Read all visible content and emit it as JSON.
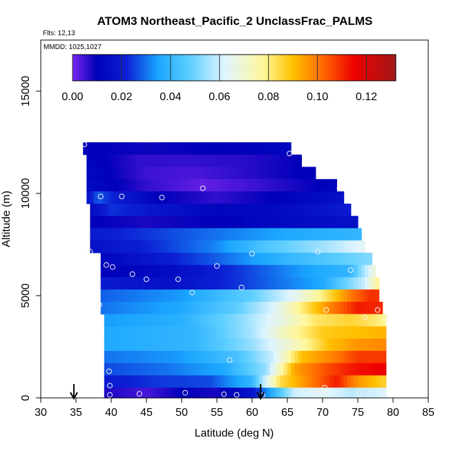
{
  "chart_data": {
    "type": "heatmap",
    "title": "ATOM3 Northeast_Pacific_2 UnclassFrac_PALMS",
    "flights_note": "Flts: 12,13",
    "dates_note": "MMDD: 1025,1027",
    "xlabel": "Latitude (deg N)",
    "ylabel": "Altitude (m)",
    "xlim": [
      30,
      85
    ],
    "ylim": [
      0,
      17500
    ],
    "x_ticks": [
      "30",
      "35",
      "40",
      "45",
      "50",
      "55",
      "60",
      "65",
      "70",
      "75",
      "80",
      "85"
    ],
    "y_ticks": [
      "0",
      "5000",
      "10000",
      "15000"
    ],
    "colorbar": {
      "range": [
        0,
        0.132
      ],
      "tick_labels": [
        "0.00",
        "0.02",
        "0.04",
        "0.06",
        "0.08",
        "0.10",
        "0.12"
      ],
      "tick_values": [
        0,
        0.02,
        0.04,
        0.06,
        0.08,
        0.1,
        0.12
      ],
      "stops": [
        {
          "v": 0.0,
          "c": "#7b26f0"
        },
        {
          "v": 0.01,
          "c": "#0000b8"
        },
        {
          "v": 0.022,
          "c": "#0c20d4"
        },
        {
          "v": 0.035,
          "c": "#1aa6ff"
        },
        {
          "v": 0.048,
          "c": "#5fcfff"
        },
        {
          "v": 0.062,
          "c": "#dff4ff"
        },
        {
          "v": 0.078,
          "c": "#fff79a"
        },
        {
          "v": 0.09,
          "c": "#ffc000"
        },
        {
          "v": 0.102,
          "c": "#ff6a00"
        },
        {
          "v": 0.115,
          "c": "#ee0000"
        },
        {
          "v": 0.132,
          "c": "#a01818"
        }
      ]
    },
    "altitude_bands": [
      {
        "alt": [
          11900,
          12500
        ],
        "lat": [
          36,
          65.5
        ],
        "profile": [
          [
            36,
            0.01
          ],
          [
            45,
            0.009
          ],
          [
            55,
            0.01
          ],
          [
            65.5,
            0.012
          ]
        ]
      },
      {
        "alt": [
          11300,
          11900
        ],
        "lat": [
          36.5,
          67
        ],
        "profile": [
          [
            36.5,
            0.012
          ],
          [
            44,
            0.006
          ],
          [
            52,
            0.006
          ],
          [
            60,
            0.007
          ],
          [
            67,
            0.01
          ]
        ]
      },
      {
        "alt": [
          10700,
          11300
        ],
        "lat": [
          36.5,
          69
        ],
        "profile": [
          [
            36.5,
            0.013
          ],
          [
            45,
            0.005
          ],
          [
            52,
            0.004
          ],
          [
            60,
            0.007
          ],
          [
            69,
            0.011
          ]
        ]
      },
      {
        "alt": [
          10100,
          10700
        ],
        "lat": [
          36.5,
          72
        ],
        "profile": [
          [
            36.5,
            0.014
          ],
          [
            45,
            0.006
          ],
          [
            53,
            0.002
          ],
          [
            60,
            0.005
          ],
          [
            68,
            0.009
          ],
          [
            72,
            0.012
          ]
        ]
      },
      {
        "alt": [
          9500,
          10100
        ],
        "lat": [
          36.5,
          73
        ],
        "profile": [
          [
            36.5,
            0.016
          ],
          [
            38,
            0.028
          ],
          [
            41,
            0.02
          ],
          [
            47,
            0.01
          ],
          [
            55,
            0.006
          ],
          [
            63,
            0.01
          ],
          [
            73,
            0.016
          ]
        ]
      },
      {
        "alt": [
          8900,
          9500
        ],
        "lat": [
          37,
          74
        ],
        "profile": [
          [
            37,
            0.014
          ],
          [
            40,
            0.024
          ],
          [
            46,
            0.018
          ],
          [
            55,
            0.012
          ],
          [
            65,
            0.014
          ],
          [
            74,
            0.02
          ]
        ]
      },
      {
        "alt": [
          8300,
          8900
        ],
        "lat": [
          37,
          75
        ],
        "profile": [
          [
            37,
            0.01
          ],
          [
            45,
            0.008
          ],
          [
            55,
            0.01
          ],
          [
            65,
            0.014
          ],
          [
            75,
            0.016
          ]
        ]
      },
      {
        "alt": [
          7700,
          8300
        ],
        "lat": [
          37,
          75.5
        ],
        "profile": [
          [
            37,
            0.02
          ],
          [
            45,
            0.024
          ],
          [
            55,
            0.03
          ],
          [
            65,
            0.036
          ],
          [
            75.5,
            0.04
          ]
        ]
      },
      {
        "alt": [
          7100,
          7700
        ],
        "lat": [
          37,
          76
        ],
        "profile": [
          [
            37,
            0.016
          ],
          [
            45,
            0.022
          ],
          [
            55,
            0.032
          ],
          [
            62,
            0.045
          ],
          [
            70,
            0.055
          ],
          [
            76,
            0.064
          ]
        ]
      },
      {
        "alt": [
          6500,
          7100
        ],
        "lat": [
          38.5,
          77
        ],
        "profile": [
          [
            38.5,
            0.012
          ],
          [
            45,
            0.018
          ],
          [
            55,
            0.028
          ],
          [
            65,
            0.04
          ],
          [
            77,
            0.052
          ]
        ]
      },
      {
        "alt": [
          5900,
          6500
        ],
        "lat": [
          38.5,
          77.5
        ],
        "profile": [
          [
            38.5,
            0.01
          ],
          [
            48,
            0.014
          ],
          [
            58,
            0.024
          ],
          [
            67,
            0.034
          ],
          [
            74,
            0.04
          ],
          [
            77.5,
            0.07
          ]
        ]
      },
      {
        "alt": [
          5300,
          5900
        ],
        "lat": [
          38.5,
          78
        ],
        "profile": [
          [
            38.5,
            0.02
          ],
          [
            48,
            0.016
          ],
          [
            58,
            0.024
          ],
          [
            70,
            0.036
          ],
          [
            76,
            0.06
          ],
          [
            78,
            0.08
          ]
        ]
      },
      {
        "alt": [
          4700,
          5300
        ],
        "lat": [
          38.5,
          78
        ],
        "profile": [
          [
            38.5,
            0.028
          ],
          [
            50,
            0.034
          ],
          [
            60,
            0.048
          ],
          [
            66,
            0.064
          ],
          [
            70,
            0.08
          ],
          [
            74,
            0.1
          ],
          [
            77,
            0.11
          ],
          [
            78,
            0.108
          ]
        ]
      },
      {
        "alt": [
          4100,
          4700
        ],
        "lat": [
          38.5,
          78.5
        ],
        "profile": [
          [
            38.5,
            0.03
          ],
          [
            50,
            0.036
          ],
          [
            58,
            0.048
          ],
          [
            63,
            0.062
          ],
          [
            67,
            0.08
          ],
          [
            71,
            0.098
          ],
          [
            75,
            0.112
          ],
          [
            78.5,
            0.11
          ]
        ]
      },
      {
        "alt": [
          3500,
          4100
        ],
        "lat": [
          39,
          79
        ],
        "profile": [
          [
            39,
            0.034
          ],
          [
            50,
            0.038
          ],
          [
            58,
            0.052
          ],
          [
            64,
            0.066
          ],
          [
            69,
            0.082
          ],
          [
            74,
            0.086
          ],
          [
            77,
            0.082
          ],
          [
            79,
            0.078
          ]
        ]
      },
      {
        "alt": [
          2900,
          3500
        ],
        "lat": [
          39,
          79
        ],
        "profile": [
          [
            39,
            0.036
          ],
          [
            52,
            0.04
          ],
          [
            60,
            0.056
          ],
          [
            65,
            0.074
          ],
          [
            70,
            0.088
          ],
          [
            75,
            0.09
          ],
          [
            79,
            0.092
          ]
        ]
      },
      {
        "alt": [
          2300,
          2900
        ],
        "lat": [
          39,
          79
        ],
        "profile": [
          [
            39,
            0.036
          ],
          [
            52,
            0.04
          ],
          [
            60,
            0.054
          ],
          [
            66,
            0.072
          ],
          [
            71,
            0.09
          ],
          [
            75,
            0.096
          ],
          [
            79,
            0.098
          ]
        ]
      },
      {
        "alt": [
          1700,
          2300
        ],
        "lat": [
          39,
          79
        ],
        "profile": [
          [
            39,
            0.03
          ],
          [
            50,
            0.034
          ],
          [
            58,
            0.044
          ],
          [
            63,
            0.06
          ],
          [
            67,
            0.09
          ],
          [
            72,
            0.1
          ],
          [
            75,
            0.108
          ],
          [
            79,
            0.108
          ]
        ]
      },
      {
        "alt": [
          1100,
          1700
        ],
        "lat": [
          39,
          79
        ],
        "profile": [
          [
            39,
            0.026
          ],
          [
            48,
            0.03
          ],
          [
            56,
            0.036
          ],
          [
            62,
            0.054
          ],
          [
            66,
            0.094
          ],
          [
            70,
            0.104
          ],
          [
            74,
            0.112
          ],
          [
            79,
            0.116
          ]
        ]
      },
      {
        "alt": [
          500,
          1100
        ],
        "lat": [
          39,
          79
        ],
        "profile": [
          [
            39,
            0.02
          ],
          [
            46,
            0.024
          ],
          [
            54,
            0.026
          ],
          [
            60,
            0.04
          ],
          [
            64,
            0.084
          ],
          [
            68,
            0.098
          ],
          [
            72,
            0.112
          ],
          [
            75,
            0.096
          ],
          [
            79,
            0.086
          ]
        ]
      },
      {
        "alt": [
          0,
          500
        ],
        "lat": [
          39,
          79
        ],
        "profile": [
          [
            39,
            0.008
          ],
          [
            45,
            0.004
          ],
          [
            50,
            0.01
          ],
          [
            55,
            0.008
          ],
          [
            60,
            0.018
          ],
          [
            66,
            0.06
          ],
          [
            70,
            0.064
          ],
          [
            74,
            0.058
          ],
          [
            79,
            0.062
          ]
        ]
      }
    ],
    "sample_points": [
      [
        36.2,
        12400
      ],
      [
        65.3,
        11950
      ],
      [
        72.4,
        10250
      ],
      [
        53,
        10250
      ],
      [
        38.5,
        9850
      ],
      [
        41.5,
        9850
      ],
      [
        47.2,
        9800
      ],
      [
        37,
        7150
      ],
      [
        60,
        7050
      ],
      [
        69.3,
        7150
      ],
      [
        39.3,
        6500
      ],
      [
        40.2,
        6400
      ],
      [
        55,
        6450
      ],
      [
        74,
        6250
      ],
      [
        43,
        6050
      ],
      [
        45,
        5800
      ],
      [
        49.5,
        5800
      ],
      [
        58.5,
        5400
      ],
      [
        51.5,
        5150
      ],
      [
        38.3,
        4550
      ],
      [
        70.5,
        4300
      ],
      [
        77.8,
        4300
      ],
      [
        76,
        3950
      ],
      [
        79,
        3900
      ],
      [
        56.8,
        1850
      ],
      [
        39.7,
        1300
      ],
      [
        39.8,
        600
      ],
      [
        70.3,
        500
      ],
      [
        39.8,
        150
      ],
      [
        44,
        200
      ],
      [
        50.5,
        250
      ],
      [
        56,
        180
      ],
      [
        57.8,
        150
      ],
      [
        61.5,
        130
      ],
      [
        75.2,
        180
      ],
      [
        78.8,
        120
      ]
    ],
    "markers": [
      {
        "lat": 34.7
      },
      {
        "lat": 61.2
      }
    ]
  }
}
